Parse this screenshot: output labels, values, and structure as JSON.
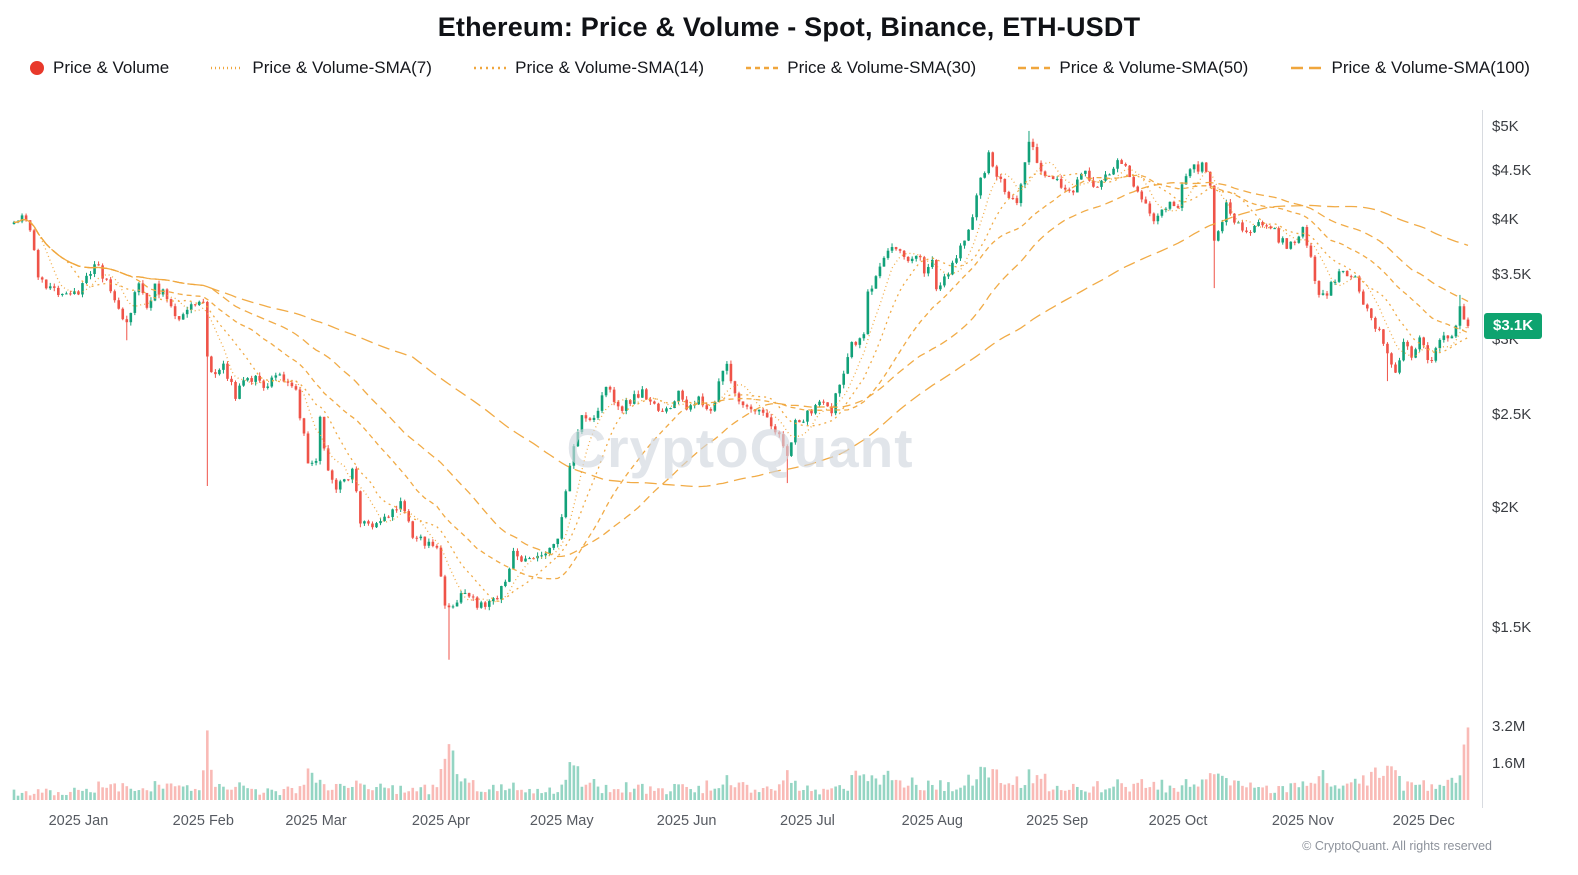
{
  "header": {
    "title": "Ethereum: Price & Volume - Spot, Binance, ETH-USDT"
  },
  "legend": {
    "items": [
      {
        "label": "Price & Volume",
        "type": "dot",
        "color": "#e8392b"
      },
      {
        "label": "Price & Volume-SMA(7)",
        "type": "line",
        "color": "#f0a63c",
        "dash": "1 3"
      },
      {
        "label": "Price & Volume-SMA(14)",
        "type": "line",
        "color": "#f0a63c",
        "dash": "2 4"
      },
      {
        "label": "Price & Volume-SMA(30)",
        "type": "line",
        "color": "#f0a63c",
        "dash": "5 4"
      },
      {
        "label": "Price & Volume-SMA(50)",
        "type": "line",
        "color": "#f0a63c",
        "dash": "8 5"
      },
      {
        "label": "Price & Volume-SMA(100)",
        "type": "line",
        "color": "#f0a63c",
        "dash": "12 6"
      }
    ]
  },
  "watermark": "CryptoQuant",
  "footer": "© CryptoQuant. All rights reserved",
  "chart_data": {
    "type": "candlestick",
    "title": "Ethereum: Price & Volume - Spot, Binance, ETH-USDT",
    "market": "Spot",
    "exchange": "Binance",
    "pair": "ETH-USDT",
    "y_scale": "log",
    "price_range": [
      1380,
      5100
    ],
    "current_price": 3100,
    "days_total": 362,
    "price_axis": {
      "labels": [
        {
          "text": "$5K",
          "value": 5000
        },
        {
          "text": "$4.5K",
          "value": 4500
        },
        {
          "text": "$4K",
          "value": 4000
        },
        {
          "text": "$3.5K",
          "value": 3500
        },
        {
          "text": "$3K",
          "value": 3000
        },
        {
          "text": "$2.5K",
          "value": 2500
        },
        {
          "text": "$2K",
          "value": 2000
        },
        {
          "text": "$1.5K",
          "value": 1500
        }
      ],
      "badge": {
        "text": "$3.1K",
        "value": 3100,
        "color": "#0ea36f"
      }
    },
    "volume_axis": {
      "max_m": 3.2,
      "labels": [
        {
          "text": "3.2M",
          "value": 3.2
        },
        {
          "text": "1.6M",
          "value": 1.6
        }
      ]
    },
    "x_axis": {
      "labels": [
        {
          "text": "2025 Jan",
          "day": 16
        },
        {
          "text": "2025 Feb",
          "day": 47
        },
        {
          "text": "2025 Mar",
          "day": 75
        },
        {
          "text": "2025 Apr",
          "day": 106
        },
        {
          "text": "2025 May",
          "day": 136
        },
        {
          "text": "2025 Jun",
          "day": 167
        },
        {
          "text": "2025 Jul",
          "day": 197
        },
        {
          "text": "2025 Aug",
          "day": 228
        },
        {
          "text": "2025 Sep",
          "day": 259
        },
        {
          "text": "2025 Oct",
          "day": 289
        },
        {
          "text": "2025 Nov",
          "day": 320
        },
        {
          "text": "2025 Dec",
          "day": 350
        }
      ]
    },
    "price_keyframes": [
      [
        0,
        3950
      ],
      [
        2,
        4010
      ],
      [
        4,
        3920
      ],
      [
        6,
        3520
      ],
      [
        8,
        3400
      ],
      [
        12,
        3350
      ],
      [
        16,
        3340
      ],
      [
        20,
        3620
      ],
      [
        23,
        3450
      ],
      [
        26,
        3220
      ],
      [
        28,
        3100
      ],
      [
        31,
        3450
      ],
      [
        33,
        3230
      ],
      [
        35,
        3420
      ],
      [
        38,
        3310
      ],
      [
        41,
        3120
      ],
      [
        44,
        3280
      ],
      [
        46,
        3300
      ],
      [
        47,
        3250
      ],
      [
        48,
        2880
      ],
      [
        50,
        2730
      ],
      [
        52,
        2800
      ],
      [
        55,
        2630
      ],
      [
        58,
        2760
      ],
      [
        62,
        2680
      ],
      [
        66,
        2750
      ],
      [
        70,
        2640
      ],
      [
        73,
        2230
      ],
      [
        75,
        2220
      ],
      [
        76,
        2480
      ],
      [
        78,
        2170
      ],
      [
        80,
        2100
      ],
      [
        84,
        2190
      ],
      [
        86,
        1930
      ],
      [
        89,
        1910
      ],
      [
        93,
        1950
      ],
      [
        96,
        2020
      ],
      [
        99,
        1880
      ],
      [
        103,
        1830
      ],
      [
        105,
        1800
      ],
      [
        107,
        1590
      ],
      [
        108,
        1560
      ],
      [
        110,
        1600
      ],
      [
        112,
        1650
      ],
      [
        115,
        1590
      ],
      [
        118,
        1585
      ],
      [
        121,
        1640
      ],
      [
        124,
        1795
      ],
      [
        127,
        1765
      ],
      [
        130,
        1795
      ],
      [
        133,
        1805
      ],
      [
        135,
        1845
      ],
      [
        138,
        2220
      ],
      [
        139,
        2350
      ],
      [
        141,
        2510
      ],
      [
        144,
        2480
      ],
      [
        147,
        2690
      ],
      [
        150,
        2540
      ],
      [
        153,
        2575
      ],
      [
        156,
        2655
      ],
      [
        159,
        2545
      ],
      [
        162,
        2525
      ],
      [
        165,
        2625
      ],
      [
        167,
        2535
      ],
      [
        170,
        2625
      ],
      [
        173,
        2505
      ],
      [
        176,
        2775
      ],
      [
        177,
        2805
      ],
      [
        180,
        2555
      ],
      [
        183,
        2545
      ],
      [
        186,
        2525
      ],
      [
        189,
        2425
      ],
      [
        192,
        2255
      ],
      [
        194,
        2445
      ],
      [
        197,
        2505
      ],
      [
        200,
        2585
      ],
      [
        203,
        2525
      ],
      [
        206,
        2775
      ],
      [
        208,
        2955
      ],
      [
        211,
        3015
      ],
      [
        212,
        3355
      ],
      [
        215,
        3555
      ],
      [
        218,
        3755
      ],
      [
        221,
        3645
      ],
      [
        224,
        3705
      ],
      [
        226,
        3555
      ],
      [
        228,
        3645
      ],
      [
        229,
        3385
      ],
      [
        231,
        3485
      ],
      [
        234,
        3675
      ],
      [
        237,
        3875
      ],
      [
        239,
        4255
      ],
      [
        242,
        4655
      ],
      [
        244,
        4435
      ],
      [
        246,
        4325
      ],
      [
        247,
        4255
      ],
      [
        249,
        4185
      ],
      [
        251,
        4625
      ],
      [
        252,
        4835
      ],
      [
        254,
        4605
      ],
      [
        256,
        4435
      ],
      [
        259,
        4405
      ],
      [
        261,
        4305
      ],
      [
        263,
        4315
      ],
      [
        266,
        4465
      ],
      [
        269,
        4305
      ],
      [
        272,
        4475
      ],
      [
        274,
        4625
      ],
      [
        277,
        4485
      ],
      [
        280,
        4185
      ],
      [
        283,
        4025
      ],
      [
        286,
        4155
      ],
      [
        289,
        4165
      ],
      [
        291,
        4485
      ],
      [
        294,
        4535
      ],
      [
        295,
        4585
      ],
      [
        297,
        4385
      ],
      [
        298,
        3835
      ],
      [
        300,
        4015
      ],
      [
        301,
        4135
      ],
      [
        304,
        3955
      ],
      [
        307,
        3885
      ],
      [
        310,
        3965
      ],
      [
        313,
        3875
      ],
      [
        316,
        3745
      ],
      [
        318,
        3805
      ],
      [
        320,
        3885
      ],
      [
        322,
        3655
      ],
      [
        323,
        3425
      ],
      [
        325,
        3315
      ],
      [
        327,
        3405
      ],
      [
        330,
        3555
      ],
      [
        333,
        3485
      ],
      [
        336,
        3195
      ],
      [
        339,
        3065
      ],
      [
        341,
        2875
      ],
      [
        343,
        2785
      ],
      [
        345,
        2965
      ],
      [
        347,
        2905
      ],
      [
        349,
        3025
      ],
      [
        350,
        2985
      ],
      [
        351,
        2845
      ],
      [
        353,
        2925
      ],
      [
        355,
        3065
      ],
      [
        357,
        3015
      ],
      [
        359,
        3225
      ],
      [
        360,
        3125
      ],
      [
        361,
        3100
      ]
    ],
    "wick_events": [
      {
        "day": 28,
        "low": 2995
      },
      {
        "day": 48,
        "low": 2110
      },
      {
        "day": 108,
        "low": 1390
      },
      {
        "day": 192,
        "low": 2125
      },
      {
        "day": 252,
        "high": 4953
      },
      {
        "day": 298,
        "low": 3395
      },
      {
        "day": 341,
        "low": 2715
      },
      {
        "day": 359,
        "high": 3340
      }
    ],
    "volume_keyframes_m": [
      [
        0,
        0.38
      ],
      [
        10,
        0.32
      ],
      [
        16,
        0.45
      ],
      [
        20,
        0.6
      ],
      [
        24,
        0.5
      ],
      [
        28,
        0.62
      ],
      [
        33,
        0.5
      ],
      [
        35,
        0.65
      ],
      [
        41,
        0.45
      ],
      [
        46,
        0.5
      ],
      [
        47,
        0.9
      ],
      [
        48,
        3.05
      ],
      [
        49,
        1.25
      ],
      [
        51,
        0.8
      ],
      [
        55,
        0.55
      ],
      [
        60,
        0.45
      ],
      [
        66,
        0.4
      ],
      [
        71,
        0.5
      ],
      [
        73,
        0.95
      ],
      [
        77,
        0.85
      ],
      [
        80,
        0.6
      ],
      [
        86,
        0.75
      ],
      [
        90,
        0.5
      ],
      [
        96,
        0.45
      ],
      [
        101,
        0.4
      ],
      [
        105,
        0.6
      ],
      [
        107,
        1.5
      ],
      [
        108,
        2.45
      ],
      [
        110,
        1.0
      ],
      [
        113,
        0.7
      ],
      [
        118,
        0.45
      ],
      [
        124,
        0.6
      ],
      [
        130,
        0.4
      ],
      [
        135,
        0.5
      ],
      [
        138,
        1.3
      ],
      [
        139,
        1.1
      ],
      [
        141,
        0.9
      ],
      [
        145,
        0.6
      ],
      [
        150,
        0.55
      ],
      [
        156,
        0.5
      ],
      [
        160,
        0.45
      ],
      [
        165,
        0.5
      ],
      [
        170,
        0.55
      ],
      [
        176,
        0.7
      ],
      [
        177,
        0.75
      ],
      [
        182,
        0.5
      ],
      [
        186,
        0.45
      ],
      [
        192,
        0.95
      ],
      [
        194,
        0.7
      ],
      [
        197,
        0.5
      ],
      [
        202,
        0.45
      ],
      [
        206,
        0.6
      ],
      [
        208,
        0.9
      ],
      [
        212,
        0.85
      ],
      [
        215,
        1.0
      ],
      [
        218,
        0.95
      ],
      [
        222,
        0.7
      ],
      [
        226,
        0.6
      ],
      [
        228,
        0.75
      ],
      [
        231,
        0.6
      ],
      [
        237,
        0.8
      ],
      [
        239,
        1.05
      ],
      [
        242,
        1.1
      ],
      [
        246,
        0.8
      ],
      [
        249,
        0.7
      ],
      [
        252,
        1.05
      ],
      [
        256,
        0.8
      ],
      [
        260,
        0.6
      ],
      [
        265,
        0.55
      ],
      [
        270,
        0.6
      ],
      [
        274,
        0.65
      ],
      [
        280,
        0.7
      ],
      [
        283,
        0.75
      ],
      [
        288,
        0.55
      ],
      [
        291,
        0.65
      ],
      [
        295,
        0.7
      ],
      [
        297,
        0.8
      ],
      [
        298,
        1.3
      ],
      [
        300,
        0.9
      ],
      [
        304,
        0.6
      ],
      [
        310,
        0.5
      ],
      [
        315,
        0.55
      ],
      [
        320,
        0.6
      ],
      [
        322,
        0.95
      ],
      [
        325,
        1.0
      ],
      [
        330,
        0.7
      ],
      [
        336,
        0.85
      ],
      [
        341,
        1.15
      ],
      [
        345,
        0.75
      ],
      [
        349,
        0.6
      ],
      [
        351,
        0.65
      ],
      [
        355,
        0.55
      ],
      [
        359,
        0.8
      ],
      [
        361,
        3.18
      ]
    ],
    "volume_events": [
      {
        "day": 48,
        "v": 3.05
      },
      {
        "day": 108,
        "v": 2.45
      },
      {
        "day": 361,
        "v": 3.18
      }
    ],
    "sma_windows": [
      7,
      14,
      30,
      50,
      100
    ],
    "colors": {
      "up": "#11a179",
      "down": "#ef5348",
      "vol_up": "rgba(17,161,121,0.45)",
      "vol_down": "rgba(239,83,72,0.4)",
      "sma": "#f0a63c",
      "axis_line": "#d8dbe0"
    }
  }
}
